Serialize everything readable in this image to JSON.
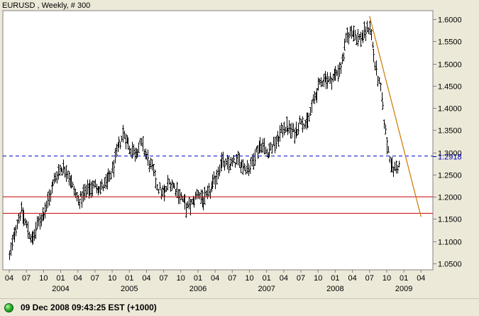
{
  "chart_header": "EURUSD , Weekly, # 300",
  "status": {
    "text": "09 Dec 2008 09:43:25  EST (+1000)",
    "indicator_color": "#2db52d"
  },
  "chart_data": {
    "type": "ohlc",
    "title": "EURUSD , Weekly, # 300",
    "xlabel": "",
    "ylabel": "",
    "y_ticks": [
      "1.6000",
      "1.5500",
      "1.5000",
      "1.4500",
      "1.4000",
      "1.3500",
      "1.3000",
      "1.2500",
      "1.2000",
      "1.1500",
      "1.1000",
      "1.0500"
    ],
    "ylim": [
      1.03,
      1.62
    ],
    "x_month_labels": [
      "04",
      "07",
      "10",
      "01",
      "04",
      "07",
      "10",
      "01",
      "04",
      "07",
      "10",
      "01",
      "04",
      "07",
      "10",
      "01",
      "04",
      "07",
      "10",
      "01",
      "04",
      "07",
      "10",
      "01",
      "04"
    ],
    "x_year_labels": [
      "2004",
      "2005",
      "2006",
      "2007",
      "2008",
      "2009"
    ],
    "price_path": [
      [
        "2003-04",
        1.065
      ],
      [
        "2003-05",
        1.125
      ],
      [
        "2003-06",
        1.17
      ],
      [
        "2003-07",
        1.135
      ],
      [
        "2003-08",
        1.1
      ],
      [
        "2003-09",
        1.14
      ],
      [
        "2003-10",
        1.165
      ],
      [
        "2003-11",
        1.2
      ],
      [
        "2003-12",
        1.245
      ],
      [
        "2004-01",
        1.265
      ],
      [
        "2004-02",
        1.26
      ],
      [
        "2004-03",
        1.225
      ],
      [
        "2004-04",
        1.19
      ],
      [
        "2004-05",
        1.205
      ],
      [
        "2004-06",
        1.22
      ],
      [
        "2004-07",
        1.225
      ],
      [
        "2004-08",
        1.22
      ],
      [
        "2004-09",
        1.23
      ],
      [
        "2004-10",
        1.26
      ],
      [
        "2004-11",
        1.31
      ],
      [
        "2004-12",
        1.345
      ],
      [
        "2005-01",
        1.31
      ],
      [
        "2005-02",
        1.3
      ],
      [
        "2005-03",
        1.32
      ],
      [
        "2005-04",
        1.29
      ],
      [
        "2005-05",
        1.26
      ],
      [
        "2005-06",
        1.22
      ],
      [
        "2005-07",
        1.205
      ],
      [
        "2005-08",
        1.235
      ],
      [
        "2005-09",
        1.22
      ],
      [
        "2005-10",
        1.2
      ],
      [
        "2005-11",
        1.175
      ],
      [
        "2005-12",
        1.185
      ],
      [
        "2006-01",
        1.21
      ],
      [
        "2006-02",
        1.19
      ],
      [
        "2006-03",
        1.21
      ],
      [
        "2006-04",
        1.24
      ],
      [
        "2006-05",
        1.28
      ],
      [
        "2006-06",
        1.27
      ],
      [
        "2006-07",
        1.275
      ],
      [
        "2006-08",
        1.28
      ],
      [
        "2006-09",
        1.27
      ],
      [
        "2006-10",
        1.265
      ],
      [
        "2006-11",
        1.3
      ],
      [
        "2006-12",
        1.32
      ],
      [
        "2007-01",
        1.3
      ],
      [
        "2007-02",
        1.315
      ],
      [
        "2007-03",
        1.33
      ],
      [
        "2007-04",
        1.36
      ],
      [
        "2007-05",
        1.35
      ],
      [
        "2007-06",
        1.345
      ],
      [
        "2007-07",
        1.375
      ],
      [
        "2007-08",
        1.36
      ],
      [
        "2007-09",
        1.41
      ],
      [
        "2007-10",
        1.445
      ],
      [
        "2007-11",
        1.47
      ],
      [
        "2007-12",
        1.46
      ],
      [
        "2008-01",
        1.475
      ],
      [
        "2008-02",
        1.495
      ],
      [
        "2008-03",
        1.56
      ],
      [
        "2008-04",
        1.575
      ],
      [
        "2008-05",
        1.555
      ],
      [
        "2008-06",
        1.565
      ],
      [
        "2008-07",
        1.585
      ],
      [
        "2008-08",
        1.49
      ],
      [
        "2008-09",
        1.43
      ],
      [
        "2008-10",
        1.32
      ],
      [
        "2008-11",
        1.26
      ],
      [
        "2008-12",
        1.27
      ]
    ],
    "current_level": {
      "value": 1.2918,
      "label": "1.2918",
      "color": "#0000cc"
    },
    "horizontal_lines": [
      {
        "value": 1.2,
        "color": "#cc0000"
      },
      {
        "value": 1.163,
        "color": "#cc0000"
      }
    ],
    "trend_line": {
      "color": "#cc7700",
      "points": [
        [
          "2008-07",
          1.607
        ],
        [
          "2009-04",
          1.155
        ]
      ]
    },
    "grid": false,
    "colors": {
      "bars": "#000000",
      "axis": "#808080",
      "plot_bg": "#ffffff"
    }
  }
}
